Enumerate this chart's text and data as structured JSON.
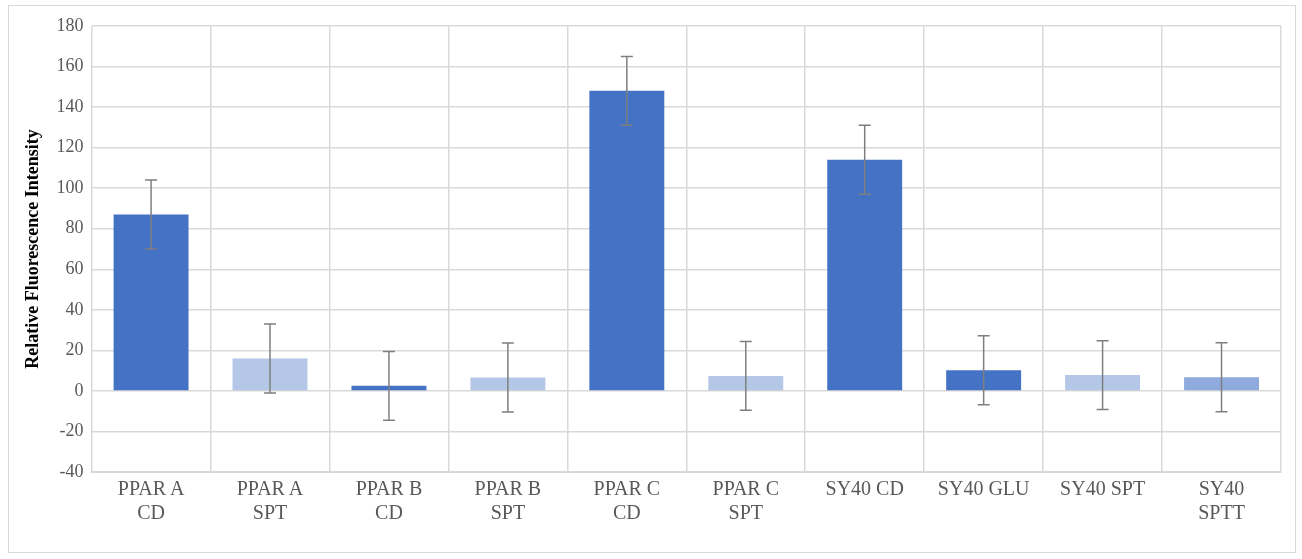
{
  "chart_data": {
    "type": "bar",
    "ylabel": "Relative Fluorescence Intensity",
    "categories": [
      "PPAR A CD",
      "PPAR A SPT",
      "PPAR B CD",
      "PPAR B SPT",
      "PPAR C CD",
      "PPAR C SPT",
      "SY40 CD",
      "SY40 GLU",
      "SY40 SPT",
      "SY40 SPTT"
    ],
    "values": [
      87,
      16,
      2.5,
      6.6,
      148,
      7.4,
      114,
      10.2,
      7.8,
      6.7
    ],
    "colors": [
      "#4472c4",
      "#b4c7e7",
      "#4472c4",
      "#b4c7e7",
      "#4472c4",
      "#b4c7e7",
      "#4472c4",
      "#4472c4",
      "#b4c7e7",
      "#8faadc"
    ],
    "errors": [
      17,
      17,
      17,
      17,
      17,
      17,
      17,
      17,
      17,
      17
    ],
    "ylim": [
      -40,
      180
    ],
    "yticks": [
      -40,
      -20,
      0,
      20,
      40,
      60,
      80,
      100,
      120,
      140,
      160,
      180
    ],
    "grid": true
  }
}
